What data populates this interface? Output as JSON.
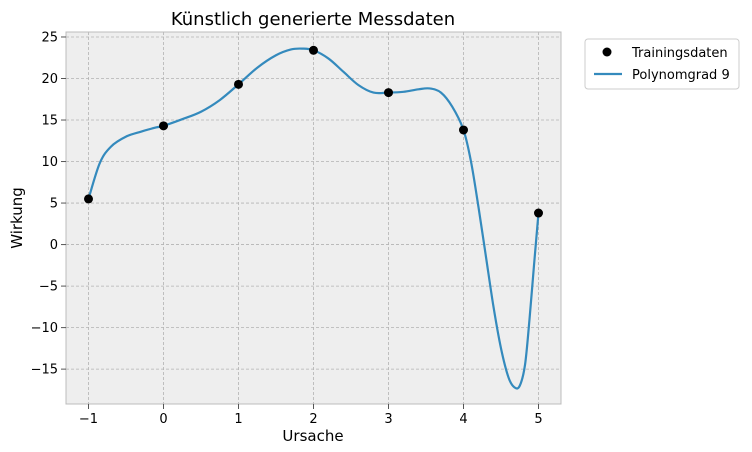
{
  "chart_data": {
    "type": "scatter",
    "title": "Künstlich generierte Messdaten",
    "xlabel": "Ursache",
    "ylabel": "Wirkung",
    "xlim": [
      -1.3,
      5.3
    ],
    "ylim": [
      -19.2,
      25.6
    ],
    "xticks": [
      -1,
      0,
      1,
      2,
      3,
      4,
      5
    ],
    "yticks": [
      -15,
      -10,
      -5,
      0,
      5,
      10,
      15,
      20,
      25
    ],
    "grid": true,
    "legend_position": "outside-top-right",
    "series": [
      {
        "name": "Trainingsdaten",
        "kind": "scatter",
        "color": "#000000",
        "x": [
          -1,
          0,
          1,
          2,
          3,
          4,
          5
        ],
        "y": [
          5.5,
          14.3,
          19.3,
          23.4,
          18.3,
          13.8,
          3.8
        ]
      },
      {
        "name": "Polynomgrad 9",
        "kind": "line",
        "color": "#348abd",
        "x": [
          -1,
          -0.85,
          -0.7,
          -0.5,
          -0.3,
          -0.1,
          0,
          0.25,
          0.5,
          0.75,
          1,
          1.25,
          1.5,
          1.7,
          1.85,
          2,
          2.2,
          2.4,
          2.6,
          2.8,
          3,
          3.2,
          3.4,
          3.55,
          3.7,
          3.85,
          4,
          4.1,
          4.2,
          4.3,
          4.4,
          4.5,
          4.6,
          4.68,
          4.75,
          4.82,
          4.88,
          4.94,
          5
        ],
        "y": [
          5.5,
          9.8,
          11.8,
          13.0,
          13.6,
          14.1,
          14.3,
          15.1,
          16.0,
          17.4,
          19.3,
          21.3,
          22.8,
          23.5,
          23.6,
          23.4,
          22.4,
          20.8,
          19.2,
          18.3,
          18.3,
          18.4,
          18.7,
          18.8,
          18.3,
          16.6,
          13.8,
          10.0,
          4.5,
          -1.5,
          -7.5,
          -12.5,
          -16.0,
          -17.2,
          -17.0,
          -14.5,
          -9.0,
          -2.5,
          3.8
        ]
      }
    ]
  }
}
